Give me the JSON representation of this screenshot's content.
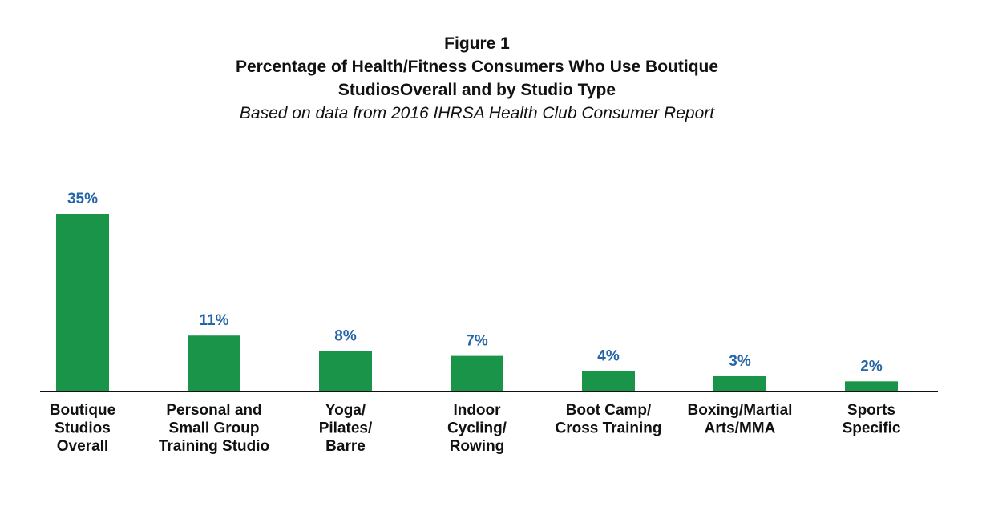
{
  "figure_label": "Figure 1",
  "title": "Percentage of Health/Fitness Consumers Who Use Boutique StudiosOverall and by Studio Type",
  "subtitle": "Based on data from 2016 IHRSA Health Club Consumer Report",
  "colors": {
    "bar": "#1a9448",
    "value_label": "#2466a8",
    "axis": "#111111"
  },
  "chart_data": {
    "type": "bar",
    "title": "Percentage of Health/Fitness Consumers Who Use Boutique StudiosOverall and by Studio Type",
    "subtitle": "Based on data from 2016 IHRSA Health Club Consumer Report",
    "categories": [
      "Boutique Studios Overall",
      "Personal and Small Group Training Studio",
      "Yoga/ Pilates/ Barre",
      "Indoor Cycling/ Rowing",
      "Boot Camp/ Cross Training",
      "Boxing/Martial Arts/MMA",
      "Sports Specific"
    ],
    "category_lines": [
      [
        "Boutique",
        "Studios",
        "Overall"
      ],
      [
        "Personal and",
        "Small Group",
        "Training Studio"
      ],
      [
        "Yoga/",
        "Pilates/",
        "Barre"
      ],
      [
        "Indoor",
        "Cycling/",
        "Rowing"
      ],
      [
        "Boot Camp/",
        "Cross Training"
      ],
      [
        "Boxing/Martial",
        "Arts/MMA"
      ],
      [
        "Sports",
        "Specific"
      ]
    ],
    "values": [
      35,
      11,
      8,
      7,
      4,
      3,
      2
    ],
    "value_labels": [
      "35%",
      "11%",
      "8%",
      "7%",
      "4%",
      "3%",
      "2%"
    ],
    "unit": "%",
    "xlabel": "",
    "ylabel": "",
    "ylim": [
      0,
      35
    ],
    "grid": false,
    "legend": "none",
    "y_axis_visible": false
  }
}
